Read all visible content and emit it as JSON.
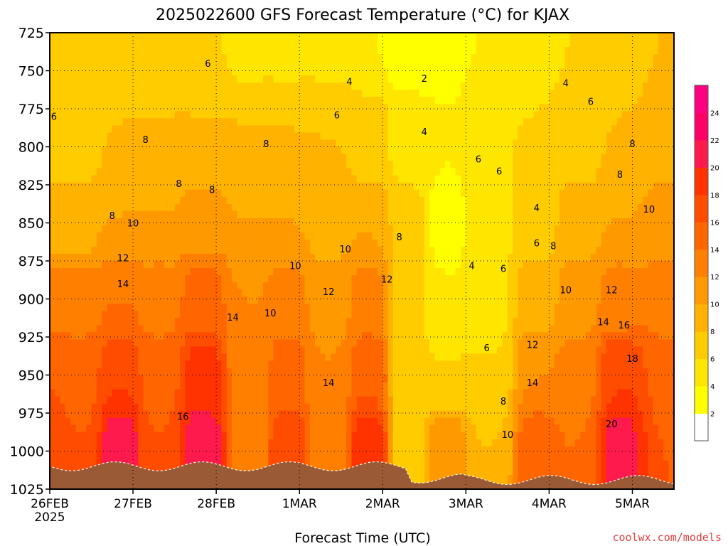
{
  "chart_data": {
    "type": "heatmap",
    "title": "2025022600 GFS Forecast Temperature (°C) for KJAX",
    "xlabel": "Forecast Time (UTC)",
    "credit": "coolwx.com/models",
    "y_ticks": [
      725,
      750,
      775,
      800,
      825,
      850,
      875,
      900,
      925,
      950,
      975,
      1000,
      1025
    ],
    "ylim": [
      1025,
      725
    ],
    "y_scale": "pressure (hPa), decreasing upward",
    "x_ticks": [
      {
        "label": "26FEB",
        "sublabel": "2025",
        "day": 0
      },
      {
        "label": "27FEB",
        "day": 1
      },
      {
        "label": "28FEB",
        "day": 2
      },
      {
        "label": "1MAR",
        "day": 3
      },
      {
        "label": "2MAR",
        "day": 4
      },
      {
        "label": "3MAR",
        "day": 5
      },
      {
        "label": "4MAR",
        "day": 6
      },
      {
        "label": "5MAR",
        "day": 7
      }
    ],
    "xlim_days": [
      0,
      7.5
    ],
    "grid": true,
    "colorbar": {
      "levels": [
        "2",
        "4",
        "6",
        "8",
        "10",
        "12",
        "14",
        "16",
        "18",
        "20",
        "22",
        "24"
      ],
      "colors": [
        "#ffffff",
        "#ffff00",
        "#ffe600",
        "#ffcc00",
        "#ffb300",
        "#ff9900",
        "#ff8000",
        "#ff6600",
        "#ff4d00",
        "#ff3300",
        "#ff1a4d",
        "#ff0066",
        "#ff0080"
      ]
    },
    "ground_color": "#9b5a36",
    "points": [
      {
        "day": 0.0,
        "p": 725,
        "t": 6
      },
      {
        "day": 0.0,
        "p": 800,
        "t": 7
      },
      {
        "day": 0.0,
        "p": 850,
        "t": 9
      },
      {
        "day": 0.0,
        "p": 900,
        "t": 13
      },
      {
        "day": 0.0,
        "p": 950,
        "t": 16
      },
      {
        "day": 0.0,
        "p": 1000,
        "t": 18
      },
      {
        "day": 0.35,
        "p": 725,
        "t": 6
      },
      {
        "day": 0.35,
        "p": 800,
        "t": 7
      },
      {
        "day": 0.35,
        "p": 850,
        "t": 9
      },
      {
        "day": 0.35,
        "p": 900,
        "t": 13
      },
      {
        "day": 0.35,
        "p": 950,
        "t": 15
      },
      {
        "day": 0.35,
        "p": 1000,
        "t": 16
      },
      {
        "day": 0.85,
        "p": 725,
        "t": 6
      },
      {
        "day": 0.85,
        "p": 800,
        "t": 8
      },
      {
        "day": 0.85,
        "p": 850,
        "t": 10
      },
      {
        "day": 0.85,
        "p": 900,
        "t": 14
      },
      {
        "day": 0.85,
        "p": 950,
        "t": 18
      },
      {
        "day": 0.85,
        "p": 1000,
        "t": 22
      },
      {
        "day": 1.3,
        "p": 725,
        "t": 6
      },
      {
        "day": 1.3,
        "p": 800,
        "t": 8
      },
      {
        "day": 1.3,
        "p": 850,
        "t": 10
      },
      {
        "day": 1.3,
        "p": 900,
        "t": 13
      },
      {
        "day": 1.3,
        "p": 950,
        "t": 15
      },
      {
        "day": 1.3,
        "p": 1000,
        "t": 16
      },
      {
        "day": 1.85,
        "p": 725,
        "t": 6
      },
      {
        "day": 1.85,
        "p": 800,
        "t": 8
      },
      {
        "day": 1.85,
        "p": 850,
        "t": 11
      },
      {
        "day": 1.85,
        "p": 900,
        "t": 15
      },
      {
        "day": 1.85,
        "p": 950,
        "t": 19
      },
      {
        "day": 1.85,
        "p": 1000,
        "t": 22
      },
      {
        "day": 2.4,
        "p": 725,
        "t": 5
      },
      {
        "day": 2.4,
        "p": 800,
        "t": 8
      },
      {
        "day": 2.4,
        "p": 850,
        "t": 10
      },
      {
        "day": 2.4,
        "p": 900,
        "t": 12
      },
      {
        "day": 2.4,
        "p": 950,
        "t": 12
      },
      {
        "day": 2.4,
        "p": 1000,
        "t": 12
      },
      {
        "day": 2.85,
        "p": 725,
        "t": 5
      },
      {
        "day": 2.85,
        "p": 800,
        "t": 8
      },
      {
        "day": 2.85,
        "p": 850,
        "t": 10
      },
      {
        "day": 2.85,
        "p": 900,
        "t": 13
      },
      {
        "day": 2.85,
        "p": 950,
        "t": 15
      },
      {
        "day": 2.85,
        "p": 1000,
        "t": 18
      },
      {
        "day": 3.35,
        "p": 725,
        "t": 5
      },
      {
        "day": 3.35,
        "p": 800,
        "t": 8
      },
      {
        "day": 3.35,
        "p": 850,
        "t": 9
      },
      {
        "day": 3.35,
        "p": 900,
        "t": 11
      },
      {
        "day": 3.35,
        "p": 950,
        "t": 12
      },
      {
        "day": 3.35,
        "p": 1000,
        "t": 13
      },
      {
        "day": 3.85,
        "p": 725,
        "t": 4
      },
      {
        "day": 3.85,
        "p": 800,
        "t": 7
      },
      {
        "day": 3.85,
        "p": 850,
        "t": 10
      },
      {
        "day": 3.85,
        "p": 900,
        "t": 13
      },
      {
        "day": 3.85,
        "p": 950,
        "t": 16
      },
      {
        "day": 3.85,
        "p": 1000,
        "t": 20
      },
      {
        "day": 4.3,
        "p": 725,
        "t": 2
      },
      {
        "day": 4.3,
        "p": 800,
        "t": 5
      },
      {
        "day": 4.3,
        "p": 850,
        "t": 7
      },
      {
        "day": 4.3,
        "p": 900,
        "t": 7
      },
      {
        "day": 4.3,
        "p": 950,
        "t": 6
      },
      {
        "day": 4.3,
        "p": 1000,
        "t": 6
      },
      {
        "day": 4.75,
        "p": 725,
        "t": 3
      },
      {
        "day": 4.75,
        "p": 800,
        "t": 4
      },
      {
        "day": 4.75,
        "p": 850,
        "t": 3
      },
      {
        "day": 4.75,
        "p": 900,
        "t": 4
      },
      {
        "day": 4.75,
        "p": 950,
        "t": 6
      },
      {
        "day": 4.75,
        "p": 1000,
        "t": 12
      },
      {
        "day": 5.3,
        "p": 725,
        "t": 4
      },
      {
        "day": 5.3,
        "p": 800,
        "t": 6
      },
      {
        "day": 5.3,
        "p": 850,
        "t": 5
      },
      {
        "day": 5.3,
        "p": 900,
        "t": 5
      },
      {
        "day": 5.3,
        "p": 950,
        "t": 6
      },
      {
        "day": 5.3,
        "p": 1000,
        "t": 8
      },
      {
        "day": 5.85,
        "p": 725,
        "t": 5
      },
      {
        "day": 5.85,
        "p": 800,
        "t": 6
      },
      {
        "day": 5.85,
        "p": 850,
        "t": 7
      },
      {
        "day": 5.85,
        "p": 900,
        "t": 9
      },
      {
        "day": 5.85,
        "p": 950,
        "t": 12
      },
      {
        "day": 5.85,
        "p": 1000,
        "t": 16
      },
      {
        "day": 6.35,
        "p": 725,
        "t": 6
      },
      {
        "day": 6.35,
        "p": 800,
        "t": 7
      },
      {
        "day": 6.35,
        "p": 850,
        "t": 9
      },
      {
        "day": 6.35,
        "p": 900,
        "t": 11
      },
      {
        "day": 6.35,
        "p": 950,
        "t": 13
      },
      {
        "day": 6.35,
        "p": 1000,
        "t": 14
      },
      {
        "day": 6.85,
        "p": 725,
        "t": 7
      },
      {
        "day": 6.85,
        "p": 800,
        "t": 8
      },
      {
        "day": 6.85,
        "p": 850,
        "t": 10
      },
      {
        "day": 6.85,
        "p": 900,
        "t": 13
      },
      {
        "day": 6.85,
        "p": 950,
        "t": 18
      },
      {
        "day": 6.85,
        "p": 1000,
        "t": 21
      },
      {
        "day": 7.5,
        "p": 725,
        "t": 8
      },
      {
        "day": 7.5,
        "p": 800,
        "t": 9
      },
      {
        "day": 7.5,
        "p": 850,
        "t": 11
      },
      {
        "day": 7.5,
        "p": 900,
        "t": 13
      },
      {
        "day": 7.5,
        "p": 950,
        "t": 15
      },
      {
        "day": 7.5,
        "p": 1000,
        "t": 16
      }
    ],
    "contour_labels": [
      {
        "text": "6",
        "day": 0.05,
        "p": 780
      },
      {
        "text": "6",
        "day": 1.9,
        "p": 745
      },
      {
        "text": "4",
        "day": 3.6,
        "p": 757
      },
      {
        "text": "2",
        "day": 4.5,
        "p": 755
      },
      {
        "text": "4",
        "day": 6.2,
        "p": 758
      },
      {
        "text": "6",
        "day": 6.5,
        "p": 770
      },
      {
        "text": "6",
        "day": 3.45,
        "p": 779
      },
      {
        "text": "4",
        "day": 4.5,
        "p": 790
      },
      {
        "text": "8",
        "day": 1.15,
        "p": 795
      },
      {
        "text": "8",
        "day": 2.6,
        "p": 798
      },
      {
        "text": "8",
        "day": 7.0,
        "p": 798
      },
      {
        "text": "6",
        "day": 5.15,
        "p": 808
      },
      {
        "text": "6",
        "day": 5.4,
        "p": 816
      },
      {
        "text": "8",
        "day": 6.85,
        "p": 818
      },
      {
        "text": "8",
        "day": 1.55,
        "p": 824
      },
      {
        "text": "8",
        "day": 1.95,
        "p": 828
      },
      {
        "text": "8",
        "day": 0.75,
        "p": 845
      },
      {
        "text": "4",
        "day": 5.85,
        "p": 840
      },
      {
        "text": "10",
        "day": 7.2,
        "p": 841
      },
      {
        "text": "10",
        "day": 1.0,
        "p": 850
      },
      {
        "text": "8",
        "day": 4.2,
        "p": 859
      },
      {
        "text": "6",
        "day": 5.85,
        "p": 863
      },
      {
        "text": "8",
        "day": 6.05,
        "p": 865
      },
      {
        "text": "10",
        "day": 3.55,
        "p": 867
      },
      {
        "text": "12",
        "day": 0.88,
        "p": 873
      },
      {
        "text": "10",
        "day": 2.95,
        "p": 878
      },
      {
        "text": "4",
        "day": 5.07,
        "p": 878
      },
      {
        "text": "6",
        "day": 5.45,
        "p": 880
      },
      {
        "text": "14",
        "day": 0.88,
        "p": 890
      },
      {
        "text": "12",
        "day": 3.35,
        "p": 895
      },
      {
        "text": "12",
        "day": 4.05,
        "p": 887
      },
      {
        "text": "10",
        "day": 6.2,
        "p": 894
      },
      {
        "text": "12",
        "day": 6.75,
        "p": 894
      },
      {
        "text": "10",
        "day": 2.65,
        "p": 909
      },
      {
        "text": "14",
        "day": 2.2,
        "p": 912
      },
      {
        "text": "14",
        "day": 6.65,
        "p": 915
      },
      {
        "text": "16",
        "day": 6.9,
        "p": 917
      },
      {
        "text": "6",
        "day": 5.25,
        "p": 932
      },
      {
        "text": "12",
        "day": 5.8,
        "p": 930
      },
      {
        "text": "18",
        "day": 7.0,
        "p": 939
      },
      {
        "text": "14",
        "day": 3.35,
        "p": 955
      },
      {
        "text": "14",
        "day": 5.8,
        "p": 955
      },
      {
        "text": "8",
        "day": 5.45,
        "p": 967
      },
      {
        "text": "16",
        "day": 1.6,
        "p": 977
      },
      {
        "text": "20",
        "day": 6.75,
        "p": 982
      },
      {
        "text": "10",
        "day": 5.5,
        "p": 989
      }
    ]
  }
}
